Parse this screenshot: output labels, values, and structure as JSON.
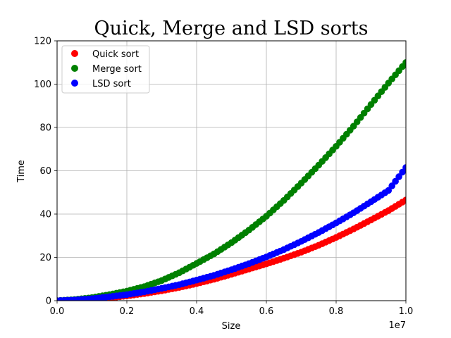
{
  "chart_data": {
    "type": "scatter",
    "title": "Quick, Merge and LSD sorts",
    "xlabel": "Size",
    "ylabel": "Time",
    "x_offset_label": "1e7",
    "xlim": [
      0,
      10000000
    ],
    "ylim": [
      0,
      120
    ],
    "x_ticks": [
      0,
      2000000,
      4000000,
      6000000,
      8000000,
      10000000
    ],
    "x_tick_labels": [
      "0.0",
      "0.2",
      "0.4",
      "0.6",
      "0.8",
      "1.0"
    ],
    "y_ticks": [
      0,
      20,
      40,
      60,
      80,
      100,
      120
    ],
    "y_tick_labels": [
      "0",
      "20",
      "40",
      "60",
      "80",
      "100",
      "120"
    ],
    "grid": true,
    "legend_position": "top-left",
    "series": [
      {
        "name": "Quick sort",
        "color": "#ff0000",
        "x": [
          0,
          500000,
          1000000,
          1500000,
          2000000,
          2500000,
          3000000,
          3500000,
          4000000,
          4500000,
          5000000,
          5500000,
          6000000,
          6500000,
          7000000,
          7500000,
          8000000,
          8500000,
          9000000,
          9500000,
          10000000
        ],
        "y": [
          0,
          0.2,
          0.6,
          1.3,
          2.2,
          3.3,
          4.6,
          6.1,
          7.9,
          9.9,
          12.2,
          14.6,
          17.0,
          19.6,
          22.4,
          25.6,
          29.2,
          33.1,
          37.3,
          41.6,
          46.5
        ]
      },
      {
        "name": "Merge sort",
        "color": "#008000",
        "x": [
          0,
          500000,
          1000000,
          1500000,
          2000000,
          2500000,
          3000000,
          3500000,
          4000000,
          4500000,
          5000000,
          5500000,
          6000000,
          6500000,
          7000000,
          7500000,
          8000000,
          8500000,
          9000000,
          9500000,
          10000000
        ],
        "y": [
          0,
          0.5,
          1.4,
          2.8,
          4.4,
          6.5,
          9.3,
          12.9,
          17.2,
          21.6,
          26.8,
          32.6,
          39.0,
          46.3,
          54.3,
          62.6,
          71.3,
          80.6,
          90.6,
          100.5,
          110.0
        ]
      },
      {
        "name": "LSD sort",
        "color": "#0000ff",
        "x": [
          0,
          500000,
          1000000,
          1500000,
          2000000,
          2500000,
          3000000,
          3500000,
          4000000,
          4500000,
          5000000,
          5500000,
          6000000,
          6500000,
          7000000,
          7500000,
          8000000,
          8500000,
          9000000,
          9500000,
          10000000
        ],
        "y": [
          0,
          0.3,
          0.9,
          1.8,
          2.8,
          4.1,
          5.7,
          7.4,
          9.5,
          11.7,
          14.3,
          17.1,
          20.2,
          23.6,
          27.4,
          31.5,
          35.9,
          40.6,
          45.7,
          50.9,
          61.5
        ]
      }
    ]
  }
}
